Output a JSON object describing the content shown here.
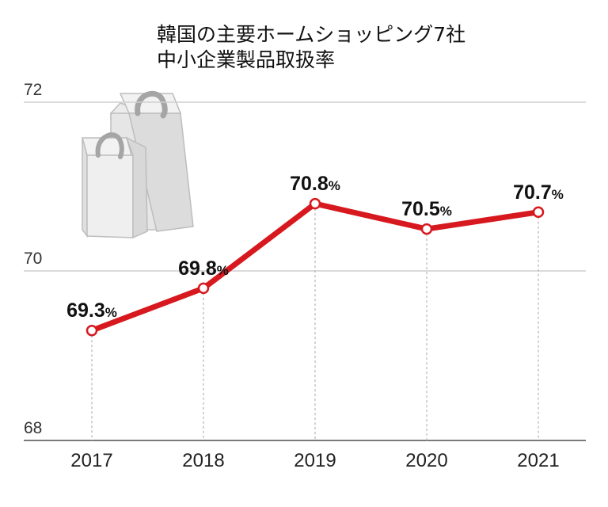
{
  "chart_data": {
    "type": "line",
    "title": [
      "韓国の主要ホームショッピング7社",
      "中小企業製品取扱率"
    ],
    "xlabel": "",
    "ylabel": "",
    "categories": [
      "2017",
      "2018",
      "2019",
      "2020",
      "2021"
    ],
    "series": [
      {
        "name": "",
        "values": [
          69.3,
          69.8,
          70.8,
          70.5,
          70.7
        ],
        "labels": [
          "69.3",
          "69.8",
          "70.8",
          "70.5",
          "70.7"
        ],
        "unit": "%",
        "color": "#d7191f"
      }
    ],
    "yticks": [
      "72",
      "70",
      "68"
    ],
    "ylim": [
      68,
      72
    ],
    "grid": true,
    "legend": "none",
    "decoration": "shopping-bags-icon"
  }
}
